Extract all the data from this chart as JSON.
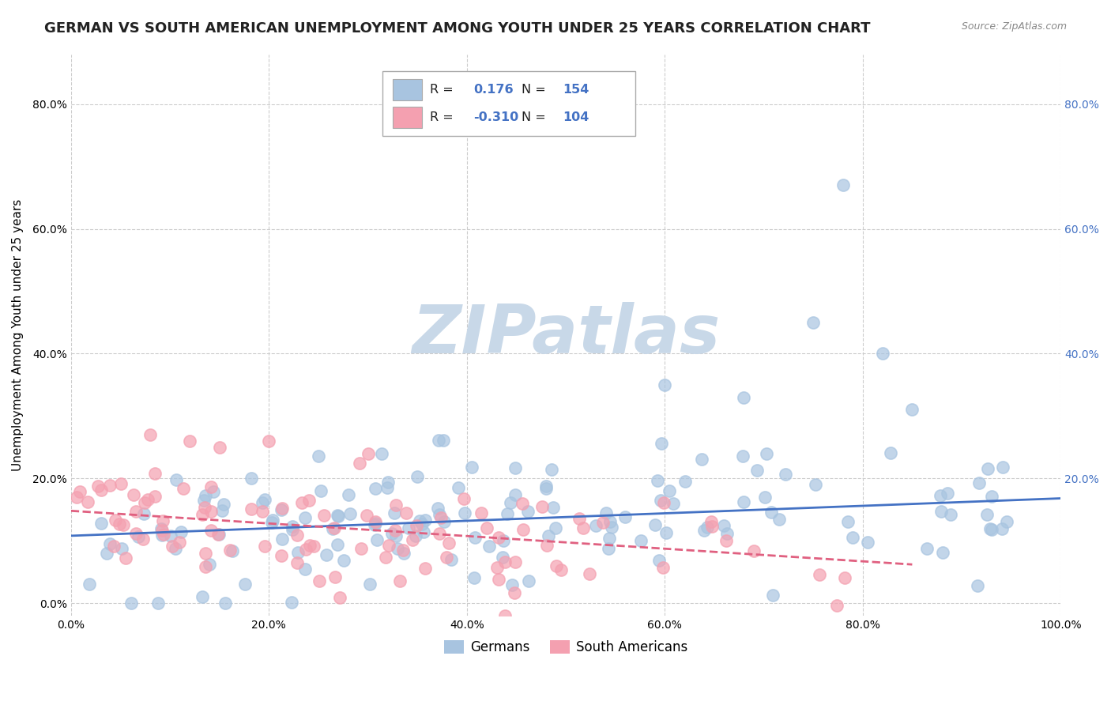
{
  "title": "GERMAN VS SOUTH AMERICAN UNEMPLOYMENT AMONG YOUTH UNDER 25 YEARS CORRELATION CHART",
  "source": "Source: ZipAtlas.com",
  "ylabel": "Unemployment Among Youth under 25 years",
  "xlim": [
    0,
    1.0
  ],
  "ylim": [
    -0.02,
    0.88
  ],
  "xticks": [
    0.0,
    0.2,
    0.4,
    0.6,
    0.8,
    1.0
  ],
  "xticklabels": [
    "0.0%",
    "20.0%",
    "40.0%",
    "60.0%",
    "80.0%",
    "100.0%"
  ],
  "yticks": [
    0.0,
    0.2,
    0.4,
    0.6,
    0.8
  ],
  "yticklabels": [
    "0.0%",
    "20.0%",
    "40.0%",
    "60.0%",
    "80.0%"
  ],
  "right_yticklabels": [
    "",
    "20.0%",
    "40.0%",
    "60.0%",
    "80.0%"
  ],
  "blue_R": 0.176,
  "blue_N": 154,
  "pink_R": -0.31,
  "pink_N": 104,
  "blue_color": "#a8c4e0",
  "pink_color": "#f4a0b0",
  "blue_line_color": "#4472c4",
  "pink_line_color": "#e06080",
  "watermark": "ZIPatlas",
  "watermark_color": "#c8d8e8",
  "legend_label_blue": "Germans",
  "legend_label_pink": "South Americans",
  "blue_trend_x": [
    0.0,
    1.0
  ],
  "blue_trend_y": [
    0.108,
    0.168
  ],
  "pink_trend_x": [
    0.0,
    0.85
  ],
  "pink_trend_y": [
    0.148,
    0.062
  ],
  "title_fontsize": 13,
  "axis_fontsize": 11,
  "tick_fontsize": 10,
  "background_color": "#ffffff",
  "grid_color": "#cccccc"
}
